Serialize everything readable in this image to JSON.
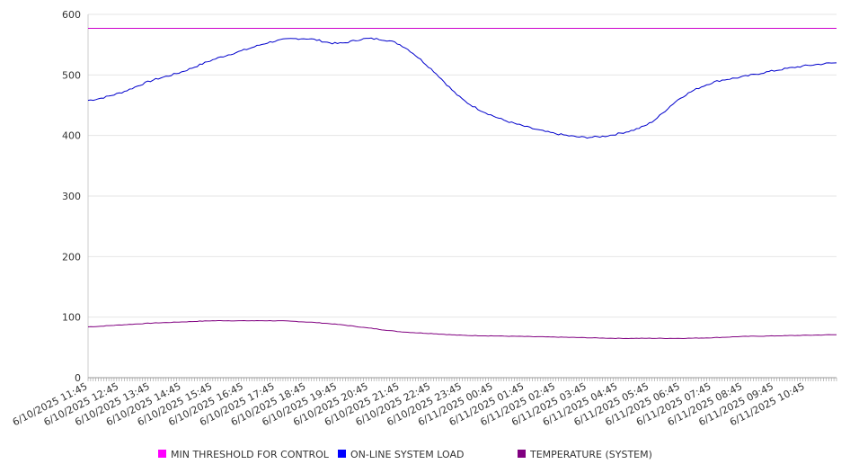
{
  "chart_data": {
    "type": "line",
    "title": "",
    "xlabel": "",
    "ylabel": "",
    "ylim": [
      0,
      600
    ],
    "yticks": [
      0,
      100,
      200,
      300,
      400,
      500,
      600
    ],
    "grid": true,
    "legend_position": "bottom",
    "x_tick_labels": [
      "6/10/2025 11:45",
      "6/10/2025 12:45",
      "6/10/2025 13:45",
      "6/10/2025 14:45",
      "6/10/2025 15:45",
      "6/10/2025 16:45",
      "6/10/2025 17:45",
      "6/10/2025 18:45",
      "6/10/2025 19:45",
      "6/10/2025 20:45",
      "6/10/2025 21:45",
      "6/10/2025 22:45",
      "6/10/2025 23:45",
      "6/11/2025 00:45",
      "6/11/2025 01:45",
      "6/11/2025 02:45",
      "6/11/2025 03:45",
      "6/11/2025 04:45",
      "6/11/2025 05:45",
      "6/11/2025 06:45",
      "6/11/2025 07:45",
      "6/11/2025 08:45",
      "6/11/2025 09:45",
      "6/11/2025 10:45"
    ],
    "x": [
      "6/10/2025 11:45",
      "6/10/2025 12:45",
      "6/10/2025 13:45",
      "6/10/2025 14:45",
      "6/10/2025 15:45",
      "6/10/2025 16:45",
      "6/10/2025 17:45",
      "6/10/2025 18:45",
      "6/10/2025 19:45",
      "6/10/2025 20:45",
      "6/10/2025 21:45",
      "6/10/2025 22:45",
      "6/10/2025 23:45",
      "6/11/2025 00:45",
      "6/11/2025 01:45",
      "6/11/2025 02:45",
      "6/11/2025 03:45",
      "6/11/2025 04:45",
      "6/11/2025 05:45",
      "6/11/2025 06:45",
      "6/11/2025 07:45",
      "6/11/2025 08:45",
      "6/11/2025 09:45",
      "6/11/2025 10:45",
      "6/11/2025 11:45"
    ],
    "series": [
      {
        "name": "MIN THRESHOLD FOR CONTROL",
        "color": "#cc00cc",
        "values": [
          577,
          577,
          577,
          577,
          577,
          577,
          577,
          577,
          577,
          577,
          577,
          577,
          577,
          577,
          577,
          577,
          577,
          577,
          577,
          577,
          577,
          577,
          577,
          577,
          577
        ]
      },
      {
        "name": "ON-LINE SYSTEM LOAD",
        "color": "#0000cc",
        "values": [
          458,
          470,
          490,
          505,
          525,
          541,
          556,
          560,
          552,
          560,
          550,
          510,
          460,
          432,
          415,
          403,
          397,
          403,
          420,
          462,
          487,
          497,
          507,
          515,
          520
        ]
      },
      {
        "name": "TEMPERATURE (SYSTEM)",
        "color": "#800080",
        "values": [
          84,
          87,
          90,
          92,
          94,
          94,
          94,
          92,
          88,
          82,
          76,
          73,
          70,
          69,
          68,
          67,
          66,
          65,
          65,
          65,
          66,
          68,
          69,
          70,
          71
        ]
      }
    ],
    "legend": [
      {
        "label": "MIN THRESHOLD FOR CONTROL",
        "color": "#ff00ff"
      },
      {
        "label": "ON-LINE SYSTEM LOAD",
        "color": "#0000ff"
      },
      {
        "label": "TEMPERATURE (SYSTEM)",
        "color": "#800080"
      }
    ]
  }
}
